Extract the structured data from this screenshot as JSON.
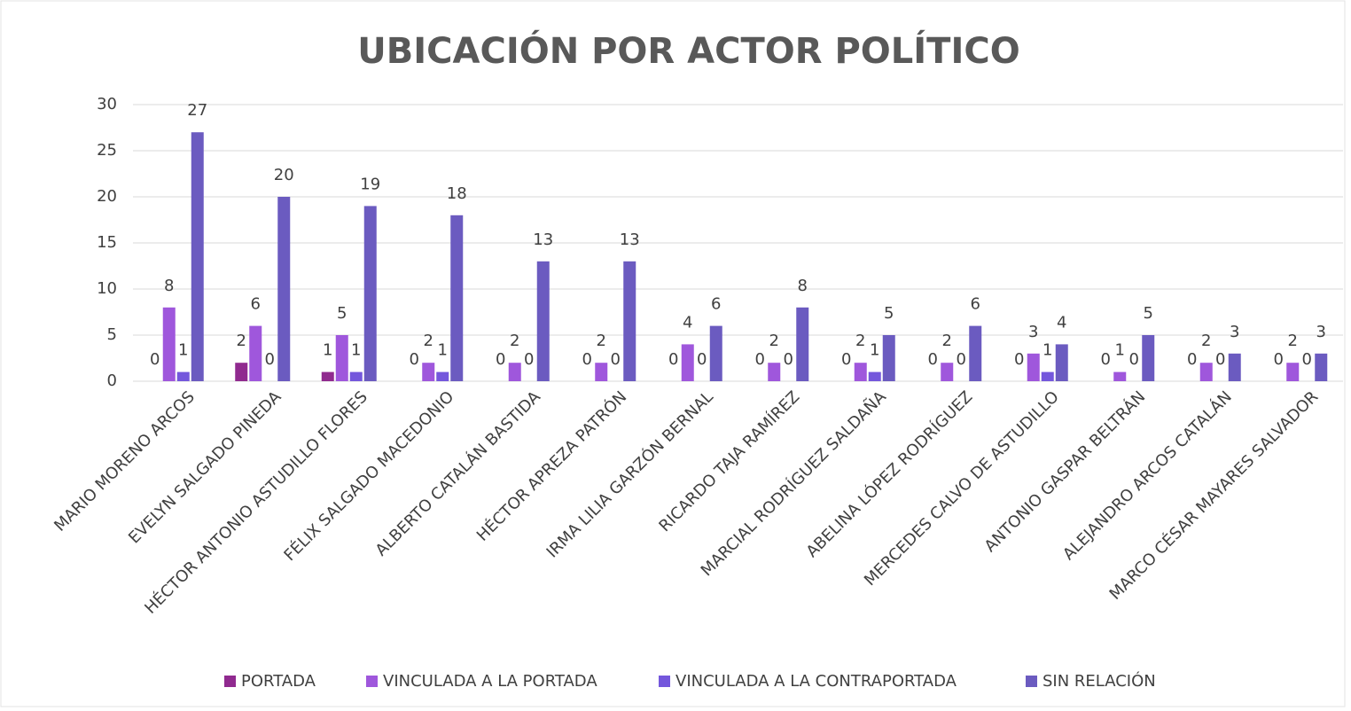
{
  "chart_data": {
    "type": "bar",
    "title": "UBICACIÓN POR ACTOR POLÍTICO",
    "categories": [
      "MARIO MORENO ARCOS",
      "EVELYN SALGADO PINEDA",
      "HÉCTOR ANTONIO ASTUDILLO FLORES",
      "FÉLIX SALGADO MACEDONIO",
      "ALBERTO CATALÁN BASTIDA",
      "HÉCTOR APREZA PATRÓN",
      "IRMA LILIA GARZÓN BERNAL",
      "RICARDO TAJA RAMÍREZ",
      "MARCIAL RODRÍGUEZ SALDAÑA",
      "ABELINA LÓPEZ RODRÍGUEZ",
      "MERCEDES CALVO DE ASTUDILLO",
      "ANTONIO GASPAR BELTRÁN",
      "ALEJANDRO ARCOS CATALÁN",
      "MARCO CÉSAR MAYARES SALVADOR"
    ],
    "series": [
      {
        "name": "PORTADA",
        "color": "#902a8f",
        "values": [
          0,
          2,
          1,
          0,
          0,
          0,
          0,
          0,
          0,
          0,
          0,
          0,
          0,
          0
        ]
      },
      {
        "name": "VINCULADA A LA PORTADA",
        "color": "#9f57dc",
        "values": [
          8,
          6,
          5,
          2,
          2,
          2,
          4,
          2,
          2,
          2,
          3,
          1,
          2,
          2
        ]
      },
      {
        "name": "VINCULADA A LA CONTRAPORTADA",
        "color": "#7457dc",
        "values": [
          1,
          0,
          1,
          1,
          0,
          0,
          0,
          0,
          1,
          0,
          1,
          0,
          0,
          0
        ]
      },
      {
        "name": "SIN RELACIÓN",
        "color": "#6b5bc0",
        "values": [
          27,
          20,
          19,
          18,
          13,
          13,
          6,
          8,
          5,
          6,
          4,
          5,
          3,
          3
        ]
      }
    ],
    "ylim": [
      0,
      30
    ],
    "yticks": [
      0,
      5,
      10,
      15,
      20,
      25,
      30
    ],
    "grid": true,
    "legend": "bottom"
  }
}
